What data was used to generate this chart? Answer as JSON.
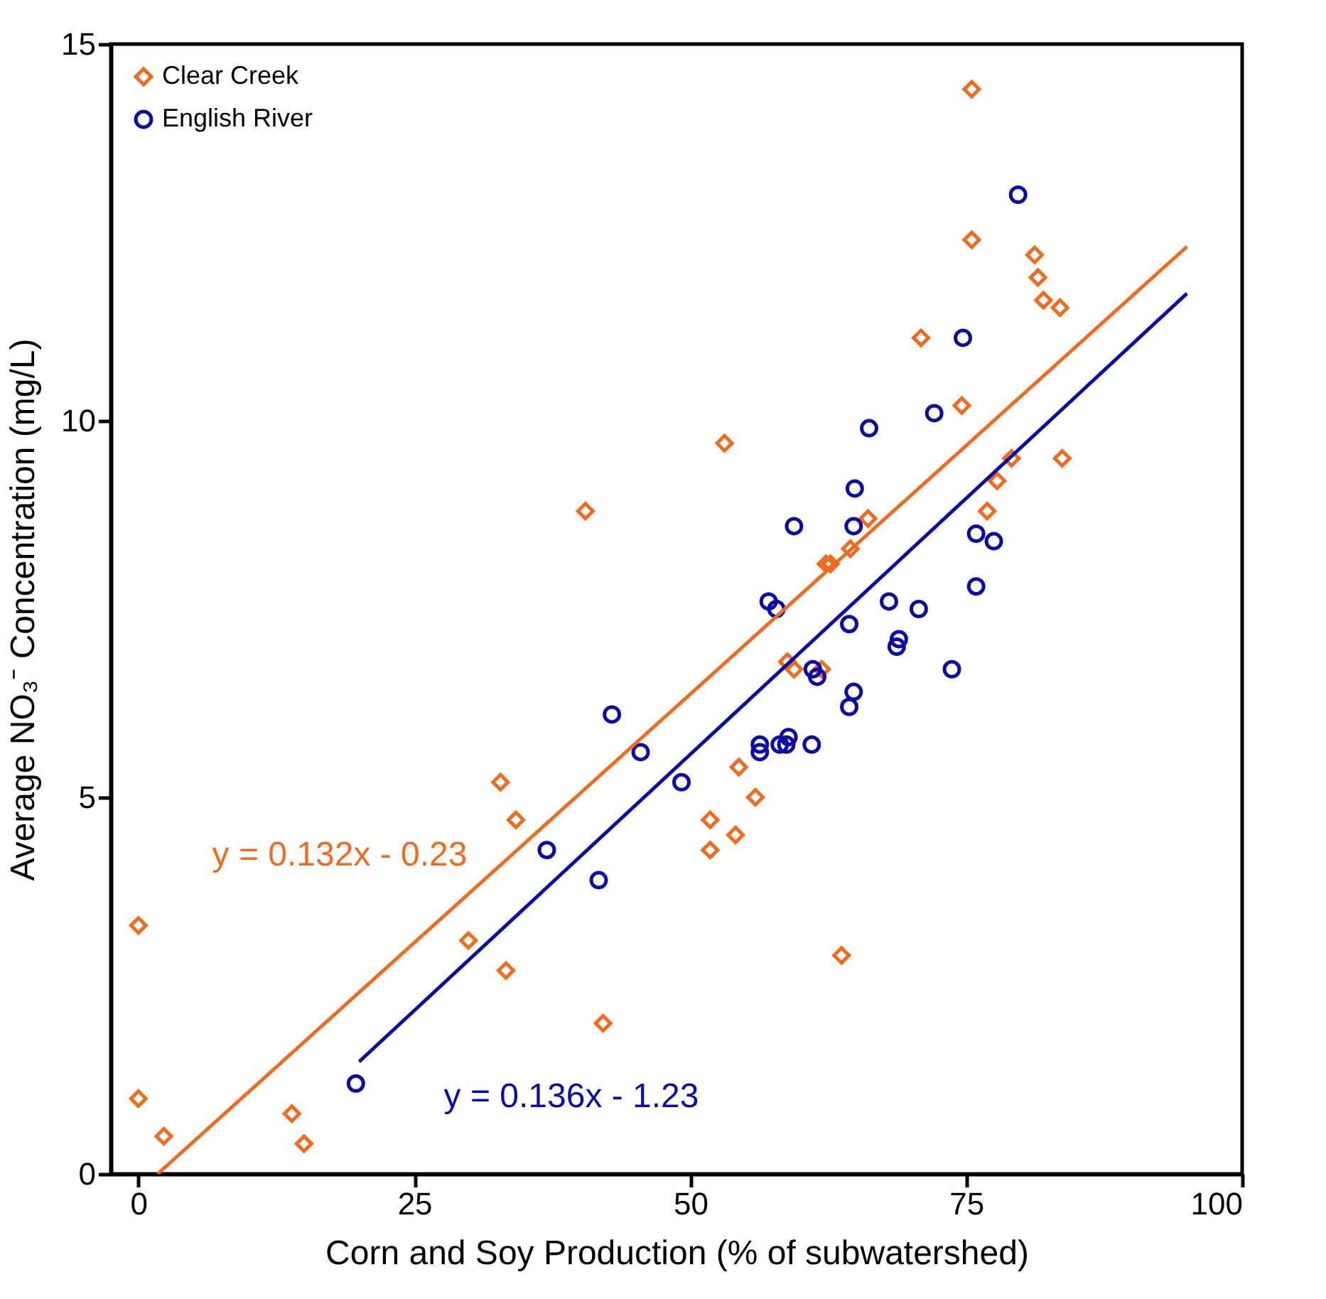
{
  "chart_data": {
    "type": "scatter",
    "xlabel": "Corn and Soy Production (% of subwatershed)",
    "ylabel": "Average NO₃⁻ Concentration (mg/L)",
    "xlim": [
      -2.5,
      100
    ],
    "ylim": [
      0,
      15
    ],
    "xticks": [
      0,
      25,
      50,
      75,
      100
    ],
    "yticks": [
      0,
      5,
      10,
      15
    ],
    "grid": false,
    "legend": "top left",
    "series": [
      {
        "name": "Clear Creek",
        "marker": "diamond",
        "color": "#f26b1d",
        "x": [
          0,
          0,
          2.3,
          13.9,
          15,
          29.9,
          32.8,
          33.3,
          34.2,
          40.5,
          42.1,
          53.1,
          51.8,
          51.8,
          54.4,
          54.1,
          55.9,
          58.8,
          59.4,
          61.9,
          62.3,
          62.7,
          64.5,
          63.7,
          66.1,
          70.9,
          74.6,
          75.5,
          75.5,
          76.9,
          77.8,
          79.1,
          81.2,
          81.5,
          82.0,
          83.5,
          83.7
        ],
        "values": [
          3.3,
          1.0,
          0.5,
          0.8,
          0.4,
          3.1,
          5.2,
          2.7,
          4.7,
          8.8,
          2.0,
          9.7,
          4.7,
          4.3,
          5.4,
          4.5,
          5.0,
          6.8,
          6.7,
          6.7,
          8.1,
          8.1,
          8.3,
          2.9,
          8.7,
          11.1,
          10.2,
          14.4,
          12.4,
          8.8,
          9.2,
          9.5,
          12.2,
          11.9,
          11.6,
          11.5,
          9.5
        ]
      },
      {
        "name": "English River",
        "marker": "circle",
        "color": "#0a0aa8",
        "x": [
          19.7,
          37.0,
          41.7,
          42.9,
          45.5,
          49.2,
          56.3,
          56.3,
          58.1,
          58.9,
          58.7,
          61.0,
          57.1,
          57.8,
          59.4,
          61.1,
          61.5,
          64.4,
          64.8,
          64.4,
          64.8,
          64.9,
          66.2,
          68.0,
          68.9,
          68.7,
          70.7,
          72.1,
          73.7,
          74.7,
          75.9,
          77.5,
          75.9,
          79.7
        ],
        "values": [
          1.2,
          4.3,
          3.9,
          6.1,
          5.6,
          5.2,
          5.7,
          5.6,
          5.7,
          5.8,
          5.7,
          5.7,
          7.6,
          7.5,
          8.6,
          6.7,
          6.6,
          7.3,
          6.4,
          6.2,
          8.6,
          9.1,
          9.9,
          7.6,
          7.1,
          7.0,
          7.5,
          10.1,
          6.7,
          11.1,
          8.5,
          8.4,
          7.8,
          13.0
        ]
      },
      {
        "type": "line",
        "color": "#f26b1d",
        "x": [
          1.74,
          95
        ],
        "values": [
          0,
          12.31
        ]
      },
      {
        "type": "line",
        "color": "#0a0aa8",
        "x": [
          20,
          95
        ],
        "values": [
          1.49,
          11.69
        ]
      }
    ],
    "annotations": [
      "y = 0.132x - 0.23",
      "y = 0.136x - 1.23"
    ]
  }
}
